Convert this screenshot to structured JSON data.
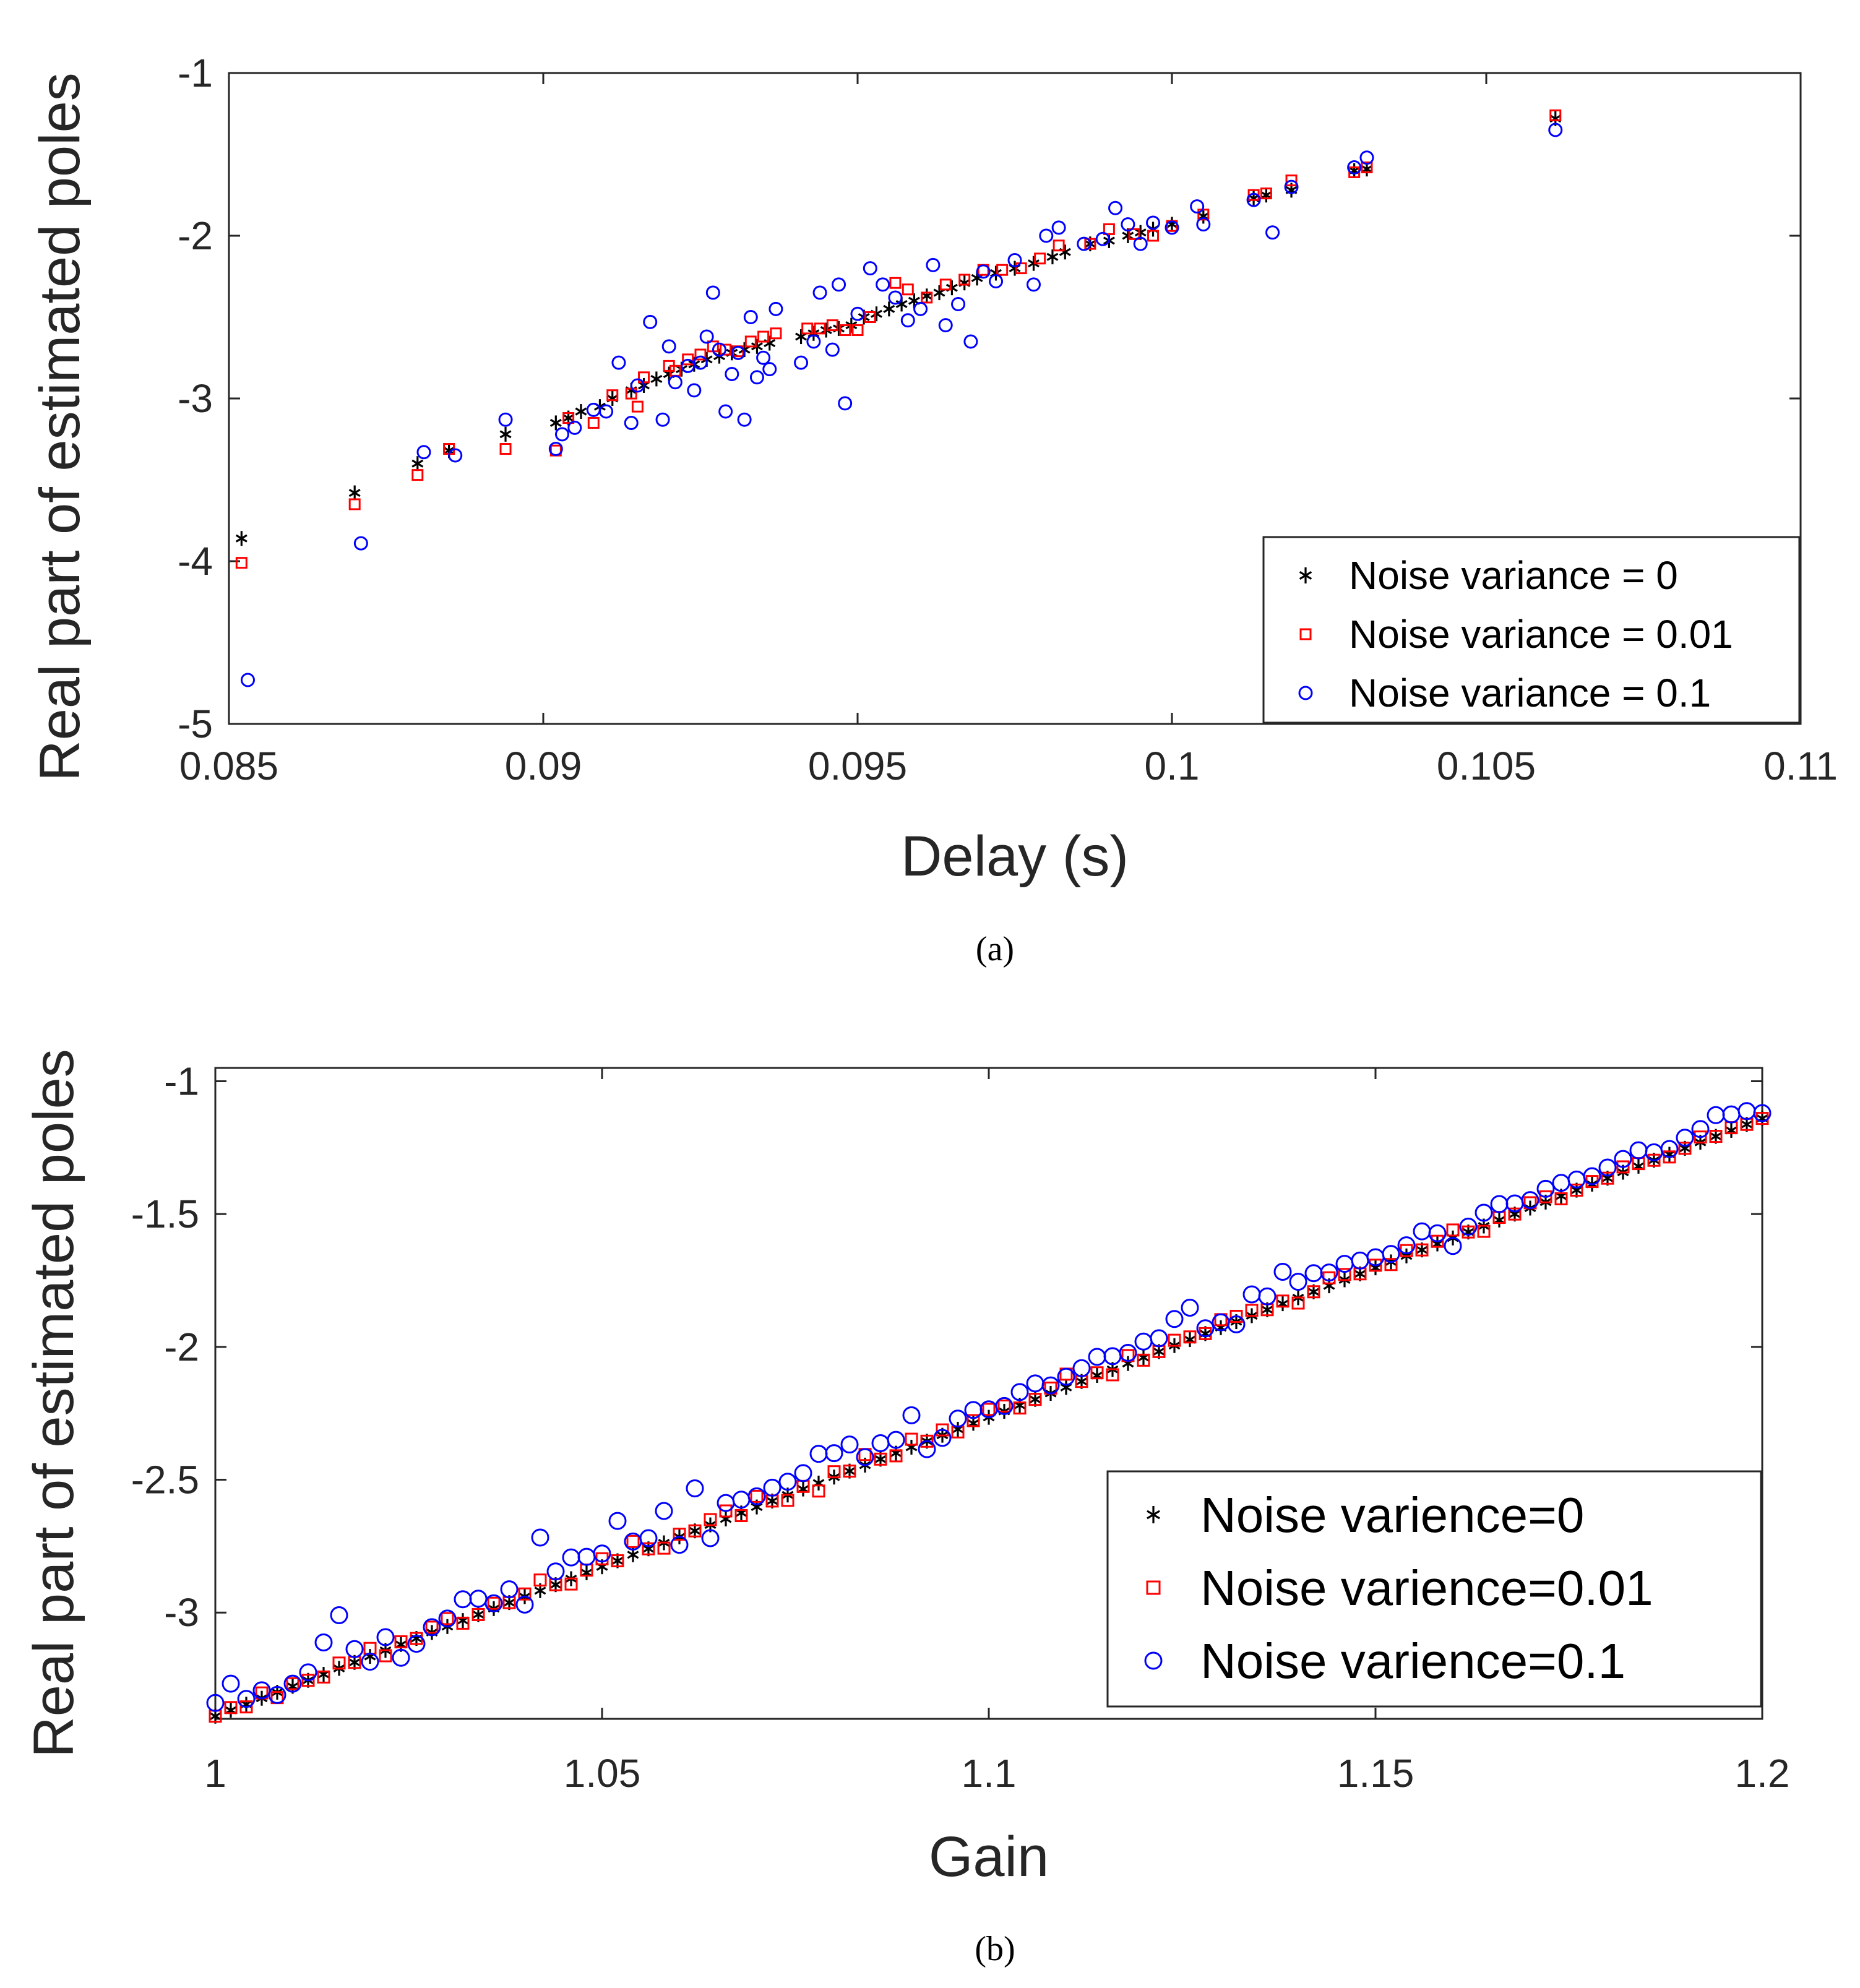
{
  "chart_data": [
    {
      "type": "scatter",
      "panel_label": "(a)",
      "xlabel": "Delay (s)",
      "ylabel": "Real part of estimated poles",
      "xlim": [
        0.085,
        0.11
      ],
      "ylim": [
        -5,
        -1
      ],
      "xticks": [
        0.085,
        0.09,
        0.095,
        0.1,
        0.105,
        0.11
      ],
      "xtick_labels": [
        "0.085",
        "0.09",
        "0.095",
        "0.1",
        "0.105",
        "0.11"
      ],
      "yticks": [
        -5,
        -4,
        -3,
        -2,
        -1
      ],
      "ytick_labels": [
        "-5",
        "-4",
        "-3",
        "-2",
        "-1"
      ],
      "legend_position": "bottom-right",
      "series": [
        {
          "name": "Noise variance = 0",
          "marker": "asterisk",
          "color": "#000000",
          "x": [
            0.0852,
            0.087,
            0.088,
            0.0885,
            0.0894,
            0.0902,
            0.0904,
            0.0906,
            0.0909,
            0.0911,
            0.0914,
            0.0916,
            0.0918,
            0.092,
            0.0922,
            0.0924,
            0.0926,
            0.0928,
            0.093,
            0.0932,
            0.0934,
            0.0936,
            0.0941,
            0.0943,
            0.0945,
            0.0947,
            0.0949,
            0.0951,
            0.0953,
            0.0955,
            0.0957,
            0.0959,
            0.0961,
            0.0963,
            0.0965,
            0.0967,
            0.0969,
            0.0972,
            0.0975,
            0.0978,
            0.0981,
            0.0983,
            0.0987,
            0.099,
            0.0993,
            0.0995,
            0.0997,
            0.1,
            0.1005,
            0.1013,
            0.1015,
            0.1019,
            0.1029,
            0.1031,
            0.1061
          ],
          "y": [
            -3.86,
            -3.58,
            -3.4,
            -3.32,
            -3.22,
            -3.15,
            -3.12,
            -3.08,
            -3.05,
            -3.0,
            -2.95,
            -2.92,
            -2.88,
            -2.85,
            -2.82,
            -2.79,
            -2.76,
            -2.74,
            -2.72,
            -2.7,
            -2.68,
            -2.66,
            -2.62,
            -2.6,
            -2.58,
            -2.57,
            -2.55,
            -2.5,
            -2.48,
            -2.45,
            -2.42,
            -2.4,
            -2.37,
            -2.35,
            -2.32,
            -2.29,
            -2.26,
            -2.23,
            -2.2,
            -2.17,
            -2.13,
            -2.1,
            -2.05,
            -2.03,
            -2.0,
            -1.98,
            -1.96,
            -1.93,
            -1.88,
            -1.77,
            -1.75,
            -1.72,
            -1.6,
            -1.59,
            -1.28
          ]
        },
        {
          "name": "Noise variance = 0.01",
          "marker": "square",
          "color": "#ff0000",
          "x": [
            0.0852,
            0.087,
            0.088,
            0.0885,
            0.0894,
            0.0902,
            0.0904,
            0.0908,
            0.0911,
            0.0914,
            0.0915,
            0.0916,
            0.092,
            0.0921,
            0.0923,
            0.0925,
            0.0927,
            0.0929,
            0.0931,
            0.0933,
            0.0935,
            0.0937,
            0.0942,
            0.0944,
            0.0946,
            0.0948,
            0.095,
            0.0952,
            0.0956,
            0.0958,
            0.0961,
            0.0964,
            0.0967,
            0.097,
            0.0973,
            0.0976,
            0.0979,
            0.0982,
            0.0987,
            0.099,
            0.0994,
            0.0997,
            0.1,
            0.1005,
            0.1013,
            0.1015,
            0.1019,
            0.1029,
            0.1031,
            0.1061
          ],
          "y": [
            -4.01,
            -3.65,
            -3.47,
            -3.31,
            -3.31,
            -3.32,
            -3.12,
            -3.15,
            -2.98,
            -2.97,
            -3.05,
            -2.87,
            -2.8,
            -2.83,
            -2.76,
            -2.73,
            -2.68,
            -2.7,
            -2.71,
            -2.65,
            -2.62,
            -2.6,
            -2.57,
            -2.57,
            -2.55,
            -2.58,
            -2.58,
            -2.5,
            -2.29,
            -2.33,
            -2.38,
            -2.3,
            -2.27,
            -2.21,
            -2.21,
            -2.2,
            -2.14,
            -2.06,
            -2.05,
            -1.96,
            -1.99,
            -2.0,
            -1.94,
            -1.87,
            -1.75,
            -1.74,
            -1.66,
            -1.61,
            -1.58,
            -1.26
          ]
        },
        {
          "name": "Noise variance = 0.1",
          "marker": "circle",
          "color": "#0000ff",
          "x": [
            0.0853,
            0.0871,
            0.0881,
            0.0886,
            0.0894,
            0.0902,
            0.0903,
            0.0905,
            0.0908,
            0.091,
            0.0912,
            0.0914,
            0.0915,
            0.0917,
            0.0919,
            0.092,
            0.0921,
            0.0923,
            0.0924,
            0.0925,
            0.0926,
            0.0927,
            0.0928,
            0.0929,
            0.093,
            0.0931,
            0.0932,
            0.0933,
            0.0934,
            0.0935,
            0.0936,
            0.0937,
            0.0941,
            0.0943,
            0.0944,
            0.0946,
            0.0947,
            0.0948,
            0.095,
            0.0952,
            0.0954,
            0.0956,
            0.0958,
            0.096,
            0.0962,
            0.0964,
            0.0966,
            0.0968,
            0.097,
            0.0972,
            0.0975,
            0.0978,
            0.098,
            0.0982,
            0.0986,
            0.0989,
            0.0991,
            0.0993,
            0.0995,
            0.0997,
            0.1,
            0.1004,
            0.1005,
            0.1013,
            0.1016,
            0.1019,
            0.1029,
            0.1031,
            0.1061
          ],
          "y": [
            -4.73,
            -3.89,
            -3.33,
            -3.35,
            -3.13,
            -3.31,
            -3.22,
            -3.18,
            -3.07,
            -3.08,
            -2.78,
            -3.15,
            -2.92,
            -2.53,
            -3.13,
            -2.68,
            -2.9,
            -2.8,
            -2.95,
            -2.78,
            -2.62,
            -2.35,
            -2.7,
            -3.08,
            -2.85,
            -2.72,
            -3.13,
            -2.5,
            -2.87,
            -2.75,
            -2.82,
            -2.45,
            -2.78,
            -2.65,
            -2.35,
            -2.7,
            -2.3,
            -3.03,
            -2.48,
            -2.2,
            -2.3,
            -2.38,
            -2.52,
            -2.45,
            -2.18,
            -2.55,
            -2.42,
            -2.65,
            -2.22,
            -2.28,
            -2.15,
            -2.3,
            -2.0,
            -1.95,
            -2.05,
            -2.02,
            -1.83,
            -1.93,
            -2.05,
            -1.92,
            -1.95,
            -1.82,
            -1.93,
            -1.78,
            -1.98,
            -1.7,
            -1.58,
            -1.52,
            -1.35
          ]
        }
      ]
    },
    {
      "type": "scatter",
      "panel_label": "(b)",
      "xlabel": "Gain",
      "ylabel": "Real part of estimated poles",
      "xlim": [
        1.0,
        1.2
      ],
      "ylim": [
        -3.4,
        -0.95
      ],
      "xticks": [
        1.0,
        1.05,
        1.1,
        1.15,
        1.2
      ],
      "xtick_labels": [
        "1",
        "1.05",
        "1.1",
        "1.15",
        "1.2"
      ],
      "yticks": [
        -3.0,
        -2.5,
        -2.0,
        -1.5,
        -1.0
      ],
      "ytick_labels": [
        "-3",
        "-2.5",
        "-2",
        "-1.5",
        "-1"
      ],
      "legend_position": "bottom-right",
      "series": [
        {
          "name": "Noise varience=0",
          "marker": "asterisk",
          "color": "#000000",
          "line": {
            "x0": 1.0,
            "y0": -3.39,
            "x1": 1.2,
            "y1": -1.14,
            "n": 101
          }
        },
        {
          "name": "Noise varience=0.01",
          "marker": "square",
          "color": "#ff0000",
          "line": {
            "x0": 1.0,
            "y0": -3.39,
            "x1": 1.2,
            "y1": -1.14,
            "n": 101
          },
          "offsets": [
            0,
            0.01,
            -0.01,
            0.02,
            -0.02,
            0.01,
            0,
            -0.01,
            0.02,
            0,
            0.03,
            -0.02,
            0.01,
            0,
            0.02,
            0.03,
            -0.01,
            0,
            0.02,
            0,
            0.01,
            0.04,
            0,
            -0.02,
            0.01,
            0.03,
            0,
            0.05,
            0,
            -0.02,
            0.01,
            0,
            0.02,
            0.03,
            -0.01,
            0.04,
            0,
            -0.02,
            0.01,
            -0.03,
            0.02,
            0,
            0.04,
            0,
            -0.01,
            0.03,
            0,
            0.02,
            -0.01,
            0.01,
            0.03,
            0.02,
            -0.01,
            0,
            0.02,
            0.05,
            0,
            0.01,
            -0.02,
            0.03,
            -0.01,
            0,
            0.02,
            0.01,
            0,
            0.03,
            0.02,
            0.02,
            0,
            0.01,
            -0.02,
            0,
            0.03,
            0.02,
            0,
            0.01,
            -0.01,
            0.02,
            0,
            0.01,
            0.03,
            0,
            -0.02,
            0.01,
            0,
            0.02,
            0.02,
            -0.01,
            0,
            0.01,
            0,
            0.02,
            0.01,
            0,
            -0.01,
            0,
            0.02,
            0,
            0.01,
            0,
            0
          ]
        },
        {
          "name": "Noise varience=0.1",
          "marker": "circle",
          "color": "#0000ff",
          "line": {
            "x0": 1.0,
            "y0": -3.39,
            "x1": 1.2,
            "y1": -1.14,
            "n": 101
          },
          "offsets": [
            0.05,
            0.1,
            0.02,
            0.03,
            -0.01,
            0.01,
            0.03,
            0.12,
            0.2,
            0.05,
            -0.02,
            0.05,
            -0.05,
            -0.02,
            0.02,
            0.03,
            0.08,
            0.06,
            0.02,
            0.05,
            -0.03,
            0.2,
            0.05,
            0.08,
            0.06,
            0.05,
            0.15,
            0.05,
            0.04,
            0.12,
            -0.03,
            0.16,
            -0.05,
            0.06,
            0.05,
            0.04,
            0.05,
            0.05,
            0.06,
            0.11,
            0.09,
            0.1,
            0.03,
            0.06,
            0.05,
            0.12,
            -0.03,
            -0.01,
            0.04,
            0.05,
            0.03,
            0.02,
            0.05,
            0.06,
            0.03,
            0.04,
            0.05,
            0.07,
            0.05,
            0.04,
            0.06,
            0.05,
            0.1,
            0.12,
            0.02,
            0.02,
            -0.01,
            0.08,
            0.05,
            0.12,
            0.06,
            0.07,
            0.05,
            0.06,
            0.05,
            0.04,
            0.03,
            0.04,
            0.07,
            0.04,
            -0.03,
            0.02,
            0.05,
            0.06,
            0.04,
            0.03,
            0.05,
            0.05,
            0.04,
            0.03,
            0.04,
            0.05,
            0.06,
            0.03,
            0.02,
            0.04,
            0.05,
            0.08,
            0.06,
            0.05,
            0.02
          ]
        }
      ]
    }
  ]
}
